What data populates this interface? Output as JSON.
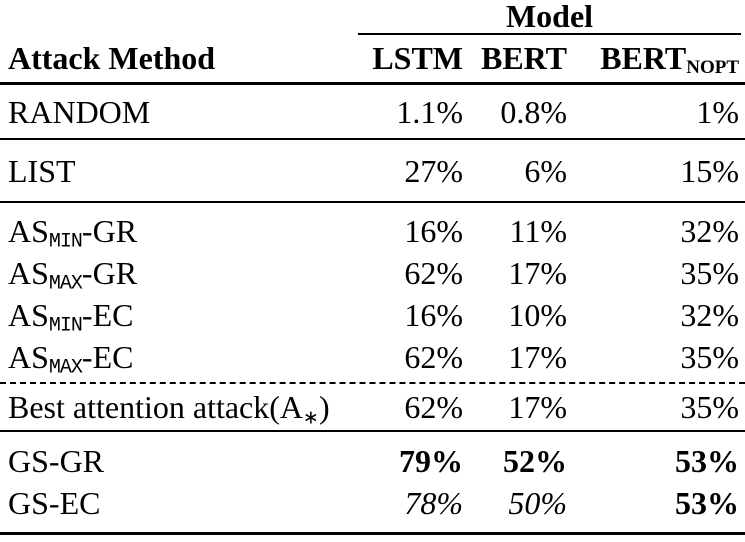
{
  "page": {
    "background_color": "#ffffff",
    "text_color": "#000000",
    "rule_color": "#000000"
  },
  "header": {
    "group_label": "Model",
    "row_label": "Attack Method",
    "columns": [
      {
        "main": "LSTM",
        "sub": ""
      },
      {
        "main": "BERT",
        "sub": ""
      },
      {
        "main": "BERT",
        "sub": "NOPT"
      }
    ]
  },
  "groups": [
    {
      "rows": [
        {
          "label": {
            "pre": "RANDOM",
            "sub": "",
            "sub_style": "",
            "post": ""
          },
          "cells": [
            {
              "text": "1.1%",
              "style": ""
            },
            {
              "text": "0.8%",
              "style": ""
            },
            {
              "text": "1%",
              "style": ""
            }
          ]
        }
      ]
    },
    {
      "rows": [
        {
          "label": {
            "pre": "LIST",
            "sub": "",
            "sub_style": "",
            "post": ""
          },
          "cells": [
            {
              "text": "27%",
              "style": ""
            },
            {
              "text": "6%",
              "style": ""
            },
            {
              "text": "15%",
              "style": ""
            }
          ]
        }
      ]
    },
    {
      "rows": [
        {
          "label": {
            "pre": "AS",
            "sub": "MIN",
            "sub_style": "mono",
            "post": "-GR"
          },
          "cells": [
            {
              "text": "16%",
              "style": ""
            },
            {
              "text": "11%",
              "style": ""
            },
            {
              "text": "32%",
              "style": ""
            }
          ]
        },
        {
          "label": {
            "pre": "AS",
            "sub": "MAX",
            "sub_style": "mono",
            "post": "-GR"
          },
          "cells": [
            {
              "text": "62%",
              "style": ""
            },
            {
              "text": "17%",
              "style": ""
            },
            {
              "text": "35%",
              "style": ""
            }
          ]
        },
        {
          "label": {
            "pre": "AS",
            "sub": "MIN",
            "sub_style": "mono",
            "post": "-EC"
          },
          "cells": [
            {
              "text": "16%",
              "style": ""
            },
            {
              "text": "10%",
              "style": ""
            },
            {
              "text": "32%",
              "style": ""
            }
          ]
        },
        {
          "label": {
            "pre": "AS",
            "sub": "MAX",
            "sub_style": "mono",
            "post": "-EC"
          },
          "cells": [
            {
              "text": "62%",
              "style": ""
            },
            {
              "text": "17%",
              "style": ""
            },
            {
              "text": "35%",
              "style": ""
            }
          ]
        }
      ]
    },
    {
      "rows": [
        {
          "label": {
            "pre": "Best attention attack(A",
            "sub": "∗",
            "sub_style": "star",
            "post": ")"
          },
          "cells": [
            {
              "text": "62%",
              "style": ""
            },
            {
              "text": "17%",
              "style": ""
            },
            {
              "text": "35%",
              "style": ""
            }
          ]
        }
      ]
    },
    {
      "rows": [
        {
          "label": {
            "pre": "GS-GR",
            "sub": "",
            "sub_style": "",
            "post": ""
          },
          "cells": [
            {
              "text": "79%",
              "style": "bold"
            },
            {
              "text": "52%",
              "style": "bold"
            },
            {
              "text": "53%",
              "style": "bold"
            }
          ]
        },
        {
          "label": {
            "pre": "GS-EC",
            "sub": "",
            "sub_style": "",
            "post": ""
          },
          "cells": [
            {
              "text": "78%",
              "style": "italic"
            },
            {
              "text": "50%",
              "style": "italic"
            },
            {
              "text": "53%",
              "style": "bold"
            }
          ]
        }
      ]
    }
  ]
}
